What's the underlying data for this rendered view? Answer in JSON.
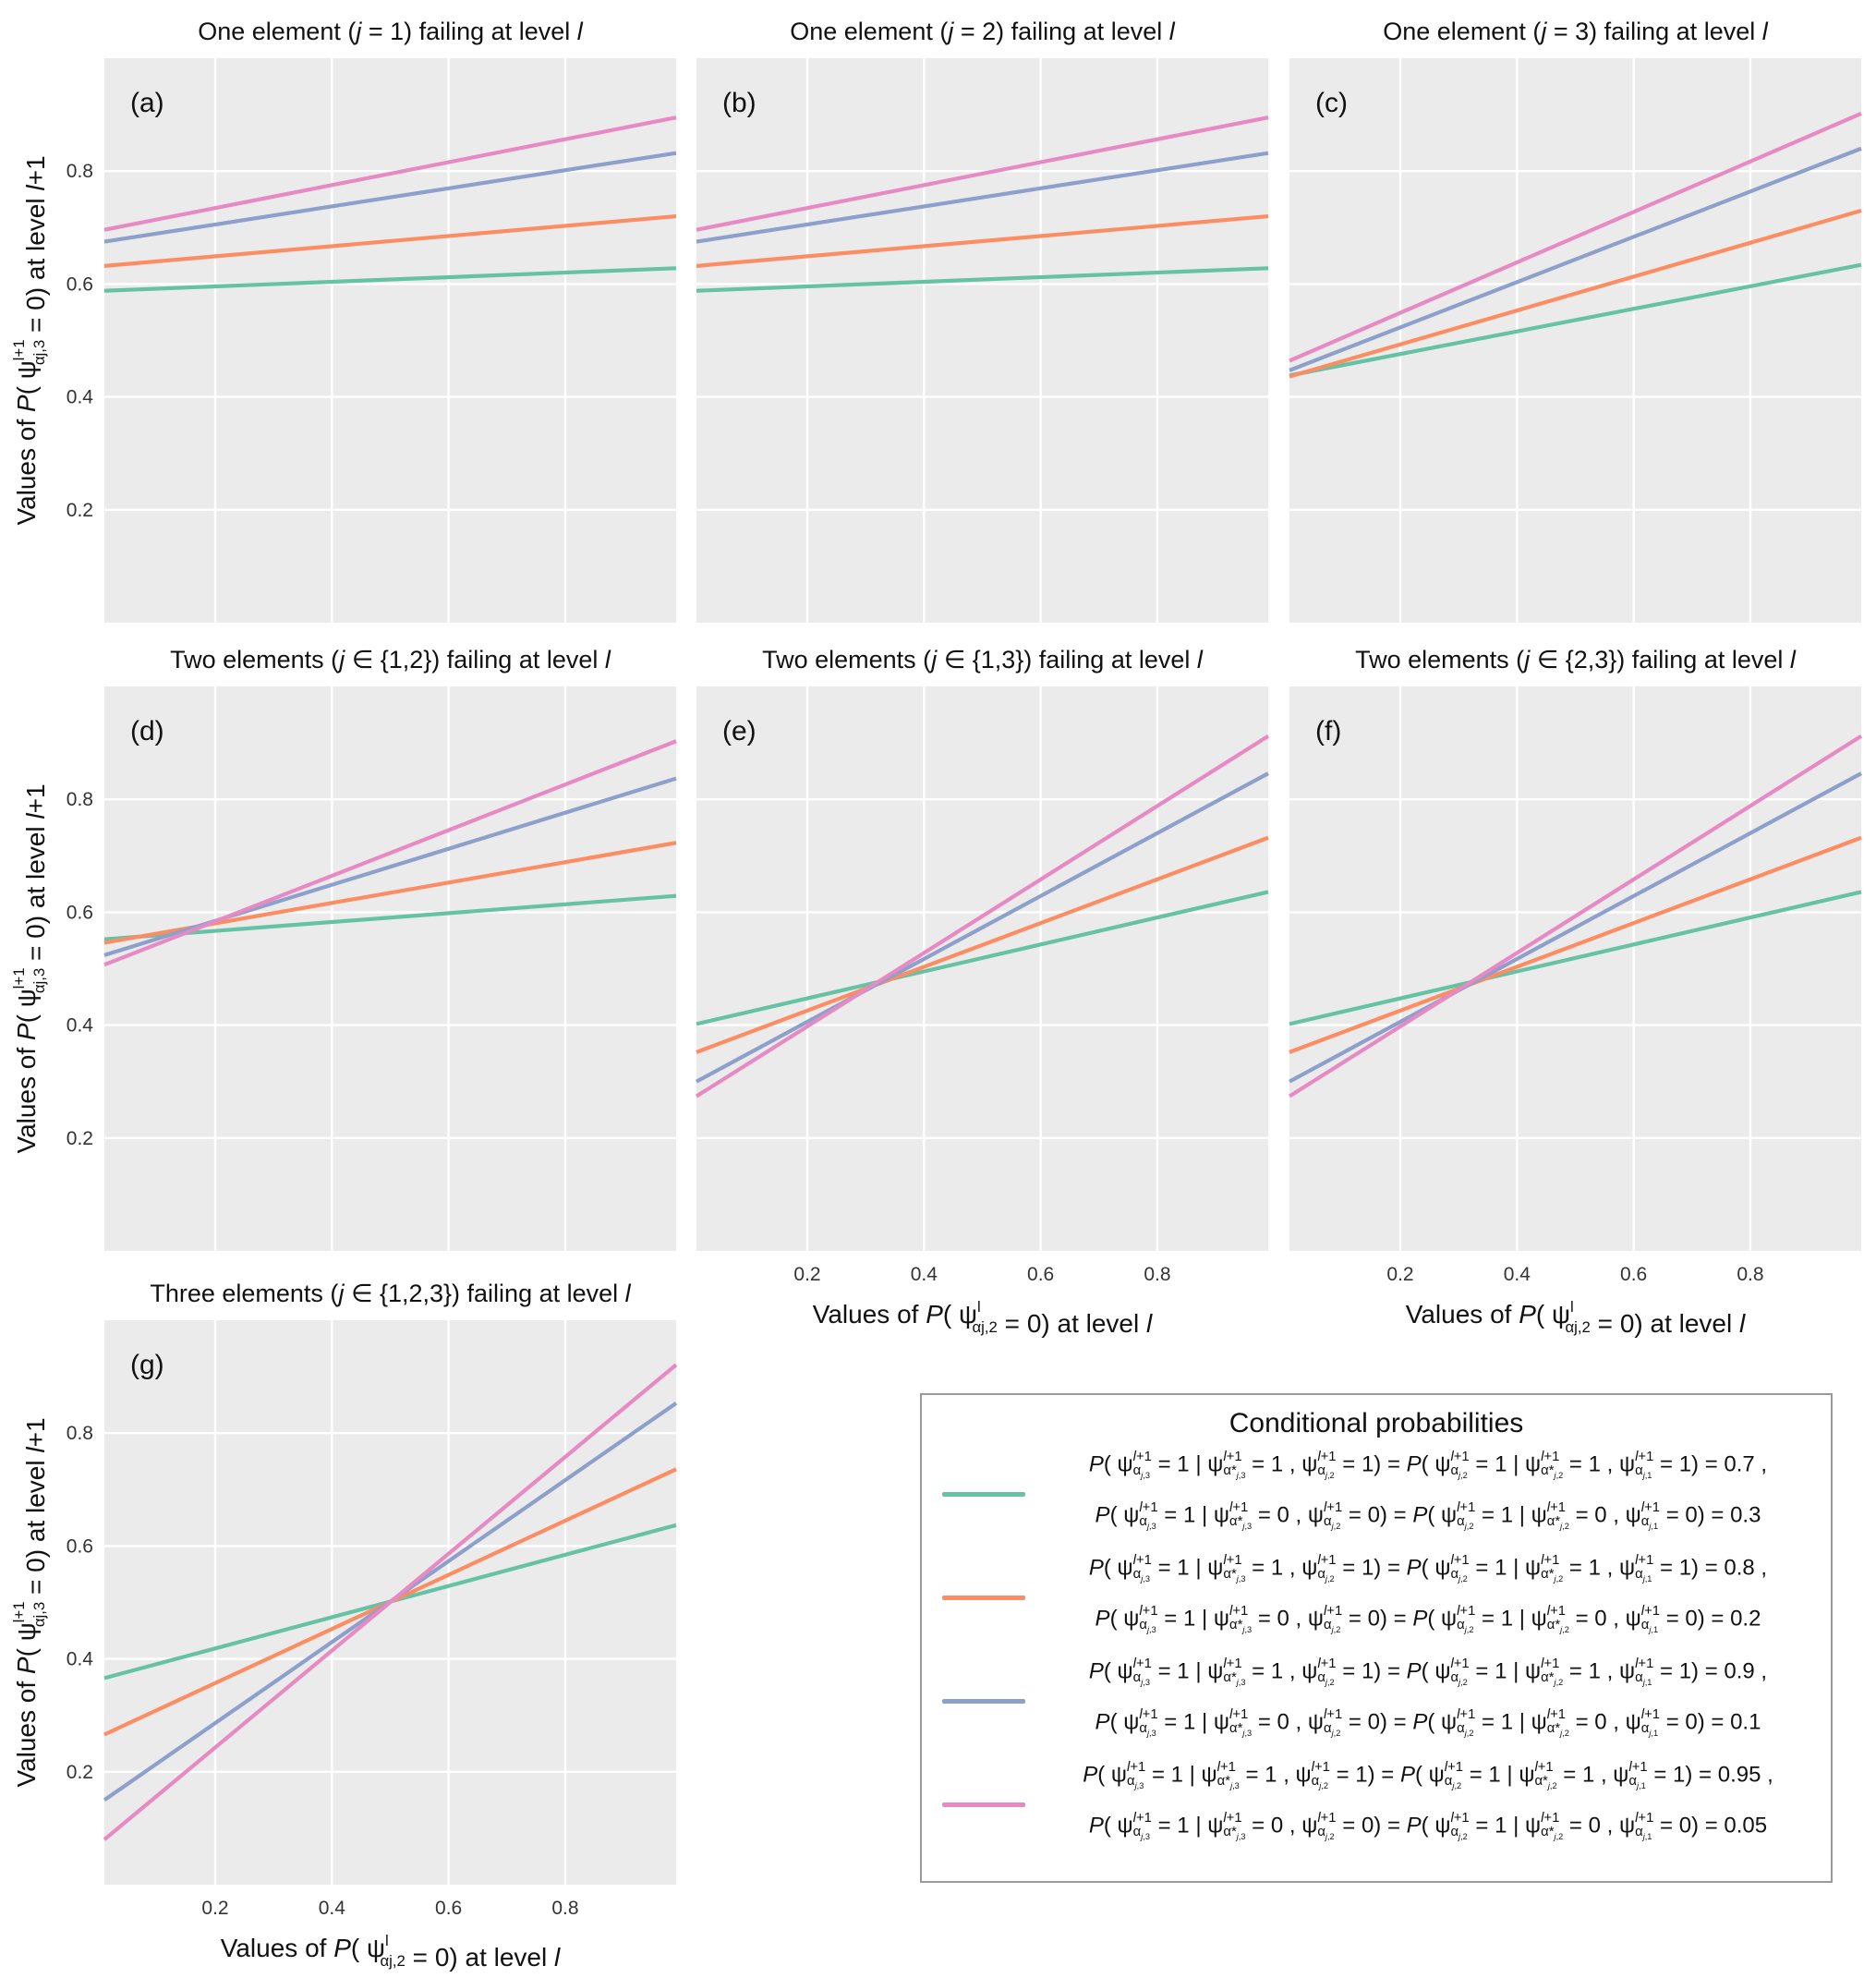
{
  "figure": {
    "yaxis_label": "Values of P( ψ^{l+1}_{α_{j,3}} = 0) at level l+1",
    "xaxis_label": "Values of P( ψ^{l}_{α_{j,2}} = 0) at level l",
    "background_color": "#EBEBEB",
    "grid_color": "#FFFFFF"
  },
  "chart_data": [
    {
      "type": "line",
      "panel": "(a)",
      "title": "One element (j = 1) failing at level l",
      "xlim": [
        0.01,
        0.99
      ],
      "ylim": [
        0.0,
        1.0
      ],
      "yticks": [
        0.2,
        0.4,
        0.6,
        0.8
      ],
      "xticks": [
        0.2,
        0.4,
        0.6,
        0.8
      ],
      "show_x_ticklabels": false,
      "show_y_ticklabels": true,
      "show_xlabel": false,
      "show_ylabel": true,
      "series": [
        {
          "name": "0.7 / 0.3",
          "color": "#66C2A5",
          "x": [
            0.01,
            0.99
          ],
          "y": [
            0.588,
            0.628
          ]
        },
        {
          "name": "0.8 / 0.2",
          "color": "#FC8D62",
          "x": [
            0.01,
            0.99
          ],
          "y": [
            0.632,
            0.72
          ]
        },
        {
          "name": "0.9 / 0.1",
          "color": "#8DA0CB",
          "x": [
            0.01,
            0.99
          ],
          "y": [
            0.675,
            0.832
          ]
        },
        {
          "name": "0.95 / 0.05",
          "color": "#E78AC3",
          "x": [
            0.01,
            0.99
          ],
          "y": [
            0.696,
            0.895
          ]
        }
      ]
    },
    {
      "type": "line",
      "panel": "(b)",
      "title": "One element (j = 2) failing at level l",
      "xlim": [
        0.01,
        0.99
      ],
      "ylim": [
        0.0,
        1.0
      ],
      "yticks": [
        0.2,
        0.4,
        0.6,
        0.8
      ],
      "xticks": [
        0.2,
        0.4,
        0.6,
        0.8
      ],
      "show_x_ticklabels": false,
      "show_y_ticklabels": false,
      "show_xlabel": false,
      "show_ylabel": false,
      "series": [
        {
          "name": "0.7 / 0.3",
          "color": "#66C2A5",
          "x": [
            0.01,
            0.99
          ],
          "y": [
            0.588,
            0.628
          ]
        },
        {
          "name": "0.8 / 0.2",
          "color": "#FC8D62",
          "x": [
            0.01,
            0.99
          ],
          "y": [
            0.632,
            0.72
          ]
        },
        {
          "name": "0.9 / 0.1",
          "color": "#8DA0CB",
          "x": [
            0.01,
            0.99
          ],
          "y": [
            0.675,
            0.832
          ]
        },
        {
          "name": "0.95 / 0.05",
          "color": "#E78AC3",
          "x": [
            0.01,
            0.99
          ],
          "y": [
            0.696,
            0.895
          ]
        }
      ]
    },
    {
      "type": "line",
      "panel": "(c)",
      "title": "One element (j = 3) failing at level l",
      "xlim": [
        0.01,
        0.99
      ],
      "ylim": [
        0.0,
        1.0
      ],
      "yticks": [
        0.2,
        0.4,
        0.6,
        0.8
      ],
      "xticks": [
        0.2,
        0.4,
        0.6,
        0.8
      ],
      "show_x_ticklabels": false,
      "show_y_ticklabels": false,
      "show_xlabel": false,
      "show_ylabel": false,
      "series": [
        {
          "name": "0.7 / 0.3",
          "color": "#66C2A5",
          "x": [
            0.01,
            0.99
          ],
          "y": [
            0.438,
            0.634
          ]
        },
        {
          "name": "0.8 / 0.2",
          "color": "#FC8D62",
          "x": [
            0.01,
            0.99
          ],
          "y": [
            0.436,
            0.73
          ]
        },
        {
          "name": "0.9 / 0.1",
          "color": "#8DA0CB",
          "x": [
            0.01,
            0.99
          ],
          "y": [
            0.447,
            0.84
          ]
        },
        {
          "name": "0.95 / 0.05",
          "color": "#E78AC3",
          "x": [
            0.01,
            0.99
          ],
          "y": [
            0.464,
            0.902
          ]
        }
      ]
    },
    {
      "type": "line",
      "panel": "(d)",
      "title": "Two elements (j ∈ {1,2}) failing at level l",
      "xlim": [
        0.01,
        0.99
      ],
      "ylim": [
        0.0,
        1.0
      ],
      "yticks": [
        0.2,
        0.4,
        0.6,
        0.8
      ],
      "xticks": [
        0.2,
        0.4,
        0.6,
        0.8
      ],
      "show_x_ticklabels": false,
      "show_y_ticklabels": true,
      "show_xlabel": false,
      "show_ylabel": true,
      "series": [
        {
          "name": "0.7 / 0.3",
          "color": "#66C2A5",
          "x": [
            0.01,
            0.99
          ],
          "y": [
            0.552,
            0.629
          ]
        },
        {
          "name": "0.8 / 0.2",
          "color": "#FC8D62",
          "x": [
            0.01,
            0.99
          ],
          "y": [
            0.546,
            0.723
          ]
        },
        {
          "name": "0.9 / 0.1",
          "color": "#8DA0CB",
          "x": [
            0.01,
            0.99
          ],
          "y": [
            0.524,
            0.837
          ]
        },
        {
          "name": "0.95 / 0.05",
          "color": "#E78AC3",
          "x": [
            0.01,
            0.99
          ],
          "y": [
            0.507,
            0.903
          ]
        }
      ]
    },
    {
      "type": "line",
      "panel": "(e)",
      "title": "Two elements (j ∈ {1,3}) failing at level l",
      "xlim": [
        0.01,
        0.99
      ],
      "ylim": [
        0.0,
        1.0
      ],
      "yticks": [
        0.2,
        0.4,
        0.6,
        0.8
      ],
      "xticks": [
        0.2,
        0.4,
        0.6,
        0.8
      ],
      "show_x_ticklabels": true,
      "show_y_ticklabels": false,
      "show_xlabel": true,
      "show_ylabel": false,
      "series": [
        {
          "name": "0.7 / 0.3",
          "color": "#66C2A5",
          "x": [
            0.01,
            0.99
          ],
          "y": [
            0.402,
            0.636
          ]
        },
        {
          "name": "0.8 / 0.2",
          "color": "#FC8D62",
          "x": [
            0.01,
            0.99
          ],
          "y": [
            0.352,
            0.732
          ]
        },
        {
          "name": "0.9 / 0.1",
          "color": "#8DA0CB",
          "x": [
            0.01,
            0.99
          ],
          "y": [
            0.3,
            0.846
          ]
        },
        {
          "name": "0.95 / 0.05",
          "color": "#E78AC3",
          "x": [
            0.01,
            0.99
          ],
          "y": [
            0.274,
            0.912
          ]
        }
      ]
    },
    {
      "type": "line",
      "panel": "(f)",
      "title": "Two elements (j ∈ {2,3}) failing at level l",
      "xlim": [
        0.01,
        0.99
      ],
      "ylim": [
        0.0,
        1.0
      ],
      "yticks": [
        0.2,
        0.4,
        0.6,
        0.8
      ],
      "xticks": [
        0.2,
        0.4,
        0.6,
        0.8
      ],
      "show_x_ticklabels": true,
      "show_y_ticklabels": false,
      "show_xlabel": true,
      "show_ylabel": false,
      "series": [
        {
          "name": "0.7 / 0.3",
          "color": "#66C2A5",
          "x": [
            0.01,
            0.99
          ],
          "y": [
            0.402,
            0.636
          ]
        },
        {
          "name": "0.8 / 0.2",
          "color": "#FC8D62",
          "x": [
            0.01,
            0.99
          ],
          "y": [
            0.352,
            0.732
          ]
        },
        {
          "name": "0.9 / 0.1",
          "color": "#8DA0CB",
          "x": [
            0.01,
            0.99
          ],
          "y": [
            0.3,
            0.846
          ]
        },
        {
          "name": "0.95 / 0.05",
          "color": "#E78AC3",
          "x": [
            0.01,
            0.99
          ],
          "y": [
            0.274,
            0.912
          ]
        }
      ]
    },
    {
      "type": "line",
      "panel": "(g)",
      "title": "Three elements (j ∈ {1,2,3}) failing at level l",
      "xlim": [
        0.01,
        0.99
      ],
      "ylim": [
        0.0,
        1.0
      ],
      "yticks": [
        0.2,
        0.4,
        0.6,
        0.8
      ],
      "xticks": [
        0.2,
        0.4,
        0.6,
        0.8
      ],
      "show_x_ticklabels": true,
      "show_y_ticklabels": true,
      "show_xlabel": true,
      "show_ylabel": true,
      "series": [
        {
          "name": "0.7 / 0.3",
          "color": "#66C2A5",
          "x": [
            0.01,
            0.99
          ],
          "y": [
            0.366,
            0.637
          ]
        },
        {
          "name": "0.8 / 0.2",
          "color": "#FC8D62",
          "x": [
            0.01,
            0.99
          ],
          "y": [
            0.266,
            0.736
          ]
        },
        {
          "name": "0.9 / 0.1",
          "color": "#8DA0CB",
          "x": [
            0.01,
            0.99
          ],
          "y": [
            0.15,
            0.853
          ]
        },
        {
          "name": "0.95 / 0.05",
          "color": "#E78AC3",
          "x": [
            0.01,
            0.99
          ],
          "y": [
            0.08,
            0.921
          ]
        }
      ]
    }
  ],
  "legend": {
    "title": "Conditional probabilities",
    "entries": [
      {
        "color": "#66C2A5",
        "line1": "P( ψ^{l+1}_{α_{j,3}} = 1 | ψ^{l+1}_{α*_{j,3}} = 1 , ψ^{l+1}_{α_{j,2}} = 1) = P( ψ^{l+1}_{α_{j,2}} = 1 | ψ^{l+1}_{α*_{j,2}} = 1 , ψ^{l+1}_{α_{j,1}} = 1) = 0.7 ,",
        "line2": "P( ψ^{l+1}_{α_{j,3}} = 1 | ψ^{l+1}_{α*_{j,3}} = 0 , ψ^{l+1}_{α_{j,2}} = 0) = P( ψ^{l+1}_{α_{j,2}} = 1 | ψ^{l+1}_{α*_{j,2}} = 0 , ψ^{l+1}_{α_{j,1}} = 0) = 0.3"
      },
      {
        "color": "#FC8D62",
        "line1": "P( ψ^{l+1}_{α_{j,3}} = 1 | ψ^{l+1}_{α*_{j,3}} = 1 , ψ^{l+1}_{α_{j,2}} = 1) = P( ψ^{l+1}_{α_{j,2}} = 1 | ψ^{l+1}_{α*_{j,2}} = 1 , ψ^{l+1}_{α_{j,1}} = 1) = 0.8 ,",
        "line2": "P( ψ^{l+1}_{α_{j,3}} = 1 | ψ^{l+1}_{α*_{j,3}} = 0 , ψ^{l+1}_{α_{j,2}} = 0) = P( ψ^{l+1}_{α_{j,2}} = 1 | ψ^{l+1}_{α*_{j,2}} = 0 , ψ^{l+1}_{α_{j,1}} = 0) = 0.2"
      },
      {
        "color": "#8DA0CB",
        "line1": "P( ψ^{l+1}_{α_{j,3}} = 1 | ψ^{l+1}_{α*_{j,3}} = 1 , ψ^{l+1}_{α_{j,2}} = 1) = P( ψ^{l+1}_{α_{j,2}} = 1 | ψ^{l+1}_{α*_{j,2}} = 1 , ψ^{l+1}_{α_{j,1}} = 1) = 0.9 ,",
        "line2": "P( ψ^{l+1}_{α_{j,3}} = 1 | ψ^{l+1}_{α*_{j,3}} = 0 , ψ^{l+1}_{α_{j,2}} = 0) = P( ψ^{l+1}_{α_{j,2}} = 1 | ψ^{l+1}_{α*_{j,2}} = 0 , ψ^{l+1}_{α_{j,1}} = 0) = 0.1"
      },
      {
        "color": "#E78AC3",
        "line1": "P( ψ^{l+1}_{α_{j,3}} = 1 | ψ^{l+1}_{α*_{j,3}} = 1 , ψ^{l+1}_{α_{j,2}} = 1) = P( ψ^{l+1}_{α_{j,2}} = 1 | ψ^{l+1}_{α*_{j,2}} = 1 , ψ^{l+1}_{α_{j,1}} = 1) = 0.95 ,",
        "line2": "P( ψ^{l+1}_{α_{j,3}} = 1 | ψ^{l+1}_{α*_{j,3}} = 0 , ψ^{l+1}_{α_{j,2}} = 0) = P( ψ^{l+1}_{α_{j,2}} = 1 | ψ^{l+1}_{α*_{j,2}} = 0 , ψ^{l+1}_{α_{j,1}} = 0) = 0.05"
      }
    ]
  }
}
